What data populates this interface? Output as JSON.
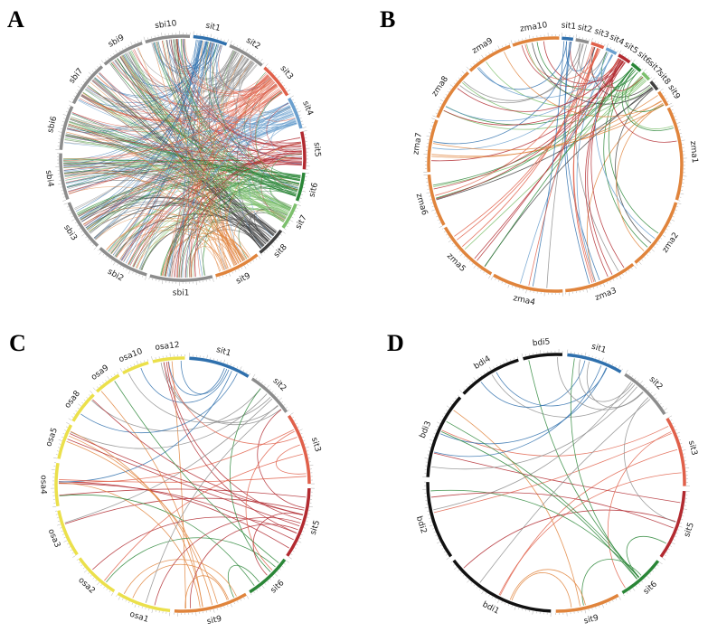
{
  "figure": {
    "panels": [
      {
        "letter": "A",
        "chromosomes": [
          {
            "name": "sit1",
            "size": 38,
            "color": "#2f70ad"
          },
          {
            "name": "sit2",
            "size": 42,
            "color": "#8c8c8c"
          },
          {
            "name": "sit3",
            "size": 40,
            "color": "#e0604a"
          },
          {
            "name": "sit4",
            "size": 36,
            "color": "#6a9fce"
          },
          {
            "name": "sit5",
            "size": 42,
            "color": "#b22a30"
          },
          {
            "name": "sit6",
            "size": 32,
            "color": "#2a8637"
          },
          {
            "name": "sit7",
            "size": 30,
            "color": "#7cbf6c"
          },
          {
            "name": "sit8",
            "size": 34,
            "color": "#404040"
          },
          {
            "name": "sit9",
            "size": 52,
            "color": "#e0843c"
          },
          {
            "name": "sbi1",
            "size": 70,
            "color": "#8c8c8c"
          },
          {
            "name": "sbi2",
            "size": 60,
            "color": "#8c8c8c"
          },
          {
            "name": "sbi3",
            "size": 58,
            "color": "#8c8c8c"
          },
          {
            "name": "sbi4",
            "size": 52,
            "color": "#8c8c8c"
          },
          {
            "name": "sbi6",
            "size": 50,
            "color": "#8c8c8c"
          },
          {
            "name": "sbi7",
            "size": 52,
            "color": "#8c8c8c"
          },
          {
            "name": "sbi9",
            "size": 48,
            "color": "#8c8c8c"
          },
          {
            "name": "sbi10",
            "size": 50,
            "color": "#8c8c8c"
          }
        ]
      },
      {
        "letter": "B",
        "chromosomes": [
          {
            "name": "sit1",
            "size": 12,
            "color": "#2f70ad"
          },
          {
            "name": "sit2",
            "size": 14,
            "color": "#8c8c8c"
          },
          {
            "name": "sit3",
            "size": 14,
            "color": "#e0604a"
          },
          {
            "name": "sit4",
            "size": 12,
            "color": "#6a9fce"
          },
          {
            "name": "sit5",
            "size": 14,
            "color": "#b22a30"
          },
          {
            "name": "sit6",
            "size": 12,
            "color": "#2a8637"
          },
          {
            "name": "sit7",
            "size": 10,
            "color": "#7cbf6c"
          },
          {
            "name": "sit8",
            "size": 11,
            "color": "#404040"
          },
          {
            "name": "sit9",
            "size": 17,
            "color": "#e0843c"
          },
          {
            "name": "zma1",
            "size": 100,
            "color": "#e0843c"
          },
          {
            "name": "zma2",
            "size": 78,
            "color": "#e0843c"
          },
          {
            "name": "zma3",
            "size": 78,
            "color": "#e0843c"
          },
          {
            "name": "zma4",
            "size": 76,
            "color": "#e0843c"
          },
          {
            "name": "zma5",
            "size": 70,
            "color": "#e0843c"
          },
          {
            "name": "zma6",
            "size": 56,
            "color": "#e0843c"
          },
          {
            "name": "zma7",
            "size": 56,
            "color": "#e0843c"
          },
          {
            "name": "zma8",
            "size": 58,
            "color": "#e0843c"
          },
          {
            "name": "zma9",
            "size": 50,
            "color": "#e0843c"
          },
          {
            "name": "zma10",
            "size": 50,
            "color": "#e0843c"
          }
        ]
      },
      {
        "letter": "C",
        "chromosomes": [
          {
            "name": "sit1",
            "size": 52,
            "color": "#2f70ad"
          },
          {
            "name": "sit2",
            "size": 40,
            "color": "#8c8c8c"
          },
          {
            "name": "sit3",
            "size": 60,
            "color": "#e0604a"
          },
          {
            "name": "sit5",
            "size": 60,
            "color": "#b22a30"
          },
          {
            "name": "sit6",
            "size": 40,
            "color": "#2a8637"
          },
          {
            "name": "sit9",
            "size": 62,
            "color": "#e0843c"
          },
          {
            "name": "osa1",
            "size": 46,
            "color": "#ebe04b"
          },
          {
            "name": "osa2",
            "size": 40,
            "color": "#ebe04b"
          },
          {
            "name": "osa3",
            "size": 40,
            "color": "#ebe04b"
          },
          {
            "name": "osa4",
            "size": 36,
            "color": "#ebe04b"
          },
          {
            "name": "osa5",
            "size": 30,
            "color": "#ebe04b"
          },
          {
            "name": "osa8",
            "size": 28,
            "color": "#ebe04b"
          },
          {
            "name": "osa9",
            "size": 23,
            "color": "#ebe04b"
          },
          {
            "name": "osa10",
            "size": 23,
            "color": "#ebe04b"
          },
          {
            "name": "osa12",
            "size": 27,
            "color": "#ebe04b"
          }
        ]
      },
      {
        "letter": "D",
        "chromosomes": [
          {
            "name": "sit1",
            "size": 40,
            "color": "#2f70ad"
          },
          {
            "name": "sit2",
            "size": 40,
            "color": "#8c8c8c"
          },
          {
            "name": "sit3",
            "size": 50,
            "color": "#e0604a"
          },
          {
            "name": "sit5",
            "size": 50,
            "color": "#b22a30"
          },
          {
            "name": "sit6",
            "size": 34,
            "color": "#2a8637"
          },
          {
            "name": "sit9",
            "size": 46,
            "color": "#e0843c"
          },
          {
            "name": "bdi1",
            "size": 80,
            "color": "#111111"
          },
          {
            "name": "bdi2",
            "size": 56,
            "color": "#111111"
          },
          {
            "name": "bdi3",
            "size": 62,
            "color": "#111111"
          },
          {
            "name": "bdi4",
            "size": 46,
            "color": "#111111"
          },
          {
            "name": "bdi5",
            "size": 28,
            "color": "#111111"
          }
        ]
      }
    ]
  }
}
